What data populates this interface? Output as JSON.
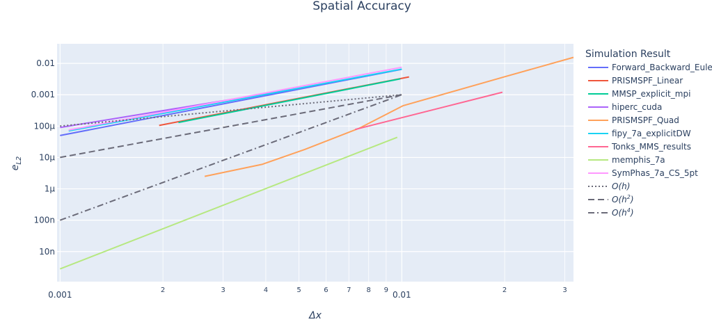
{
  "chart_data": {
    "type": "line",
    "title": "Spatial Accuracy",
    "xlabel_base": "Δx",
    "ylabel_base": "e",
    "ylabel_sub": "L2",
    "x_scale": "log",
    "y_scale": "log",
    "xlim": [
      0.00098,
      0.0318
    ],
    "ylim": [
      1.1e-09,
      0.042
    ],
    "grid": true,
    "legend_position": "right",
    "legend_title": "Simulation Result",
    "x_ticks": [
      {
        "value": 0.001,
        "label": "0.001",
        "major": true
      },
      {
        "value": 0.002,
        "label": "2",
        "major": false
      },
      {
        "value": 0.003,
        "label": "3",
        "major": false
      },
      {
        "value": 0.004,
        "label": "4",
        "major": false
      },
      {
        "value": 0.005,
        "label": "5",
        "major": false
      },
      {
        "value": 0.006,
        "label": "6",
        "major": false
      },
      {
        "value": 0.007,
        "label": "7",
        "major": false
      },
      {
        "value": 0.008,
        "label": "8",
        "major": false
      },
      {
        "value": 0.009,
        "label": "9",
        "major": false
      },
      {
        "value": 0.01,
        "label": "0.01",
        "major": true
      },
      {
        "value": 0.02,
        "label": "2",
        "major": false
      },
      {
        "value": 0.03,
        "label": "3",
        "major": false
      }
    ],
    "y_ticks": [
      {
        "value": 1e-08,
        "label": "10n"
      },
      {
        "value": 1e-07,
        "label": "100n"
      },
      {
        "value": 1e-06,
        "label": "1μ"
      },
      {
        "value": 1e-05,
        "label": "10μ"
      },
      {
        "value": 0.0001,
        "label": "100μ"
      },
      {
        "value": 0.001,
        "label": "0.001"
      },
      {
        "value": 0.01,
        "label": "0.01"
      }
    ],
    "series": [
      {
        "name": "Forward_Backward_Euler",
        "color": "#636efa",
        "dash": "solid",
        "x": [
          0.001,
          0.01
        ],
        "y": [
          5e-05,
          0.0065
        ]
      },
      {
        "name": "PRISMSPF_Linear",
        "color": "#ef553b",
        "dash": "solid",
        "x": [
          0.00195,
          0.0105
        ],
        "y": [
          0.000105,
          0.0037
        ]
      },
      {
        "name": "MMSP_explicit_mpi",
        "color": "#00cc96",
        "dash": "solid",
        "x": [
          0.00222,
          0.0099
        ],
        "y": [
          0.00013,
          0.0032
        ]
      },
      {
        "name": "hiperc_cuda",
        "color": "#ab63fa",
        "dash": "solid",
        "x": [
          0.001,
          0.005
        ],
        "y": [
          9e-05,
          0.0016
        ]
      },
      {
        "name": "PRISMSPF_Quad",
        "color": "#ffa15a",
        "dash": "solid",
        "x": [
          0.00265,
          0.0039,
          0.0052,
          0.0075,
          0.0101,
          0.0201,
          0.0318
        ],
        "y": [
          2.5e-06,
          6e-06,
          1.8e-05,
          8.5e-05,
          0.00045,
          0.0038,
          0.0155
        ]
      },
      {
        "name": "fipy_7a_explicitDW",
        "color": "#19d3f3",
        "dash": "solid",
        "x": [
          0.00106,
          0.01
        ],
        "y": [
          7e-05,
          0.0066
        ]
      },
      {
        "name": "Tonks_MMS_results",
        "color": "#ff6692",
        "dash": "solid",
        "x": [
          0.0073,
          0.0197
        ],
        "y": [
          7.8e-05,
          0.0012
        ]
      },
      {
        "name": "memphis_7a",
        "color": "#b6e880",
        "dash": "solid",
        "x": [
          0.001,
          0.0097
        ],
        "y": [
          2.8e-09,
          4.4e-05
        ]
      },
      {
        "name": "SymPhas_7a_CS_5pt",
        "color": "#ff97ff",
        "dash": "solid",
        "x": [
          0.00106,
          0.01
        ],
        "y": [
          7.5e-05,
          0.0075
        ]
      },
      {
        "name": "O(h)",
        "color": "#6a6a78",
        "dash": "dot",
        "x": [
          0.001,
          0.01
        ],
        "y": [
          0.0001,
          0.001
        ]
      },
      {
        "name": "O(h",
        "name_sup": "2",
        "name_tail": ")",
        "color": "#6a6a78",
        "dash": "dash",
        "x": [
          0.001,
          0.01
        ],
        "y": [
          1e-05,
          0.001
        ]
      },
      {
        "name": "O(h",
        "name_sup": "4",
        "name_tail": ")",
        "color": "#6a6a78",
        "dash": "dashdot",
        "x": [
          0.001,
          0.01
        ],
        "y": [
          1e-07,
          0.001
        ]
      }
    ]
  }
}
